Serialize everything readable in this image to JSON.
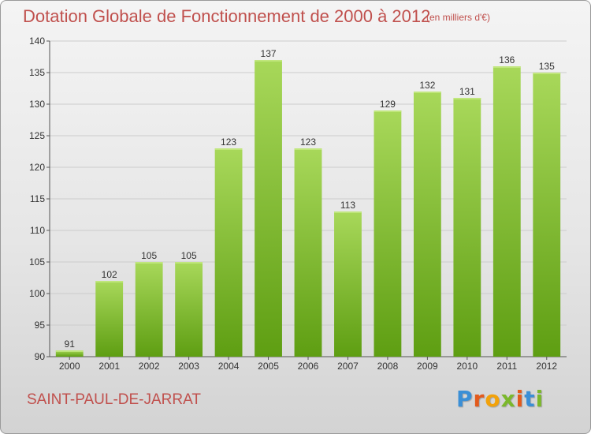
{
  "header": {
    "title": "Dotation Globale de Fonctionnement de 2000 à 2012",
    "subtitle": "(en milliers d'€)"
  },
  "footer": {
    "commune": "SAINT-PAUL-DE-JARRAT",
    "logo_letters": [
      "P",
      "r",
      "o",
      "x",
      "i",
      "t",
      "i"
    ]
  },
  "colors": {
    "bar_top": "#a8d85a",
    "bar_bottom": "#5e9e12",
    "title": "#c0504d",
    "grid": "#cccccc"
  },
  "chart_data": {
    "type": "bar",
    "title": "Dotation Globale de Fonctionnement de 2000 à 2012",
    "subtitle": "(en milliers d'€)",
    "xlabel": "",
    "ylabel": "",
    "categories": [
      "2000",
      "2001",
      "2002",
      "2003",
      "2004",
      "2005",
      "2006",
      "2007",
      "2008",
      "2009",
      "2010",
      "2011",
      "2012"
    ],
    "values": [
      91,
      102,
      105,
      105,
      123,
      137,
      123,
      113,
      129,
      132,
      131,
      136,
      135
    ],
    "ylim": [
      90,
      140
    ],
    "yticks": [
      90,
      95,
      100,
      105,
      110,
      115,
      120,
      125,
      130,
      135,
      140
    ],
    "grid": true
  }
}
